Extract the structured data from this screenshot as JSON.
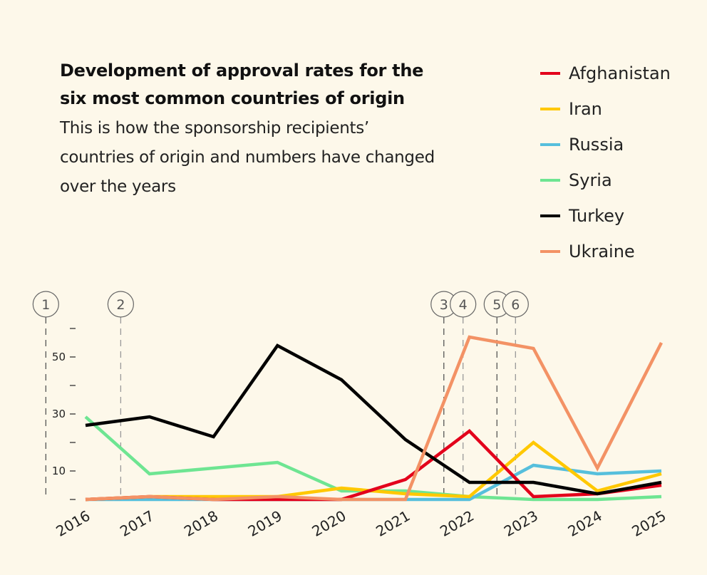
{
  "chart_data": {
    "type": "line",
    "title": "Development of approval rates for the six most common countries of origin",
    "subtitle": "This is how the sponsorship recipients’ countries of origin and numbers have changed over the years",
    "title_lines": [
      "Development of approval rates for the",
      "six most common countries of origin"
    ],
    "subtitle_lines": [
      "This is how the sponsorship recipients’",
      "countries of origin and numbers have changed",
      "over the years"
    ],
    "x": [
      2016,
      2017,
      2018,
      2019,
      2020,
      2021,
      2022,
      2023,
      2024,
      2025
    ],
    "x_tick_labels": [
      "2016",
      "2017",
      "2018",
      "2019",
      "2020",
      "2021",
      "2022",
      "2023",
      "2024",
      "2025"
    ],
    "ylim": [
      0,
      60
    ],
    "y_ticks": [
      0,
      10,
      20,
      30,
      40,
      50,
      60
    ],
    "y_tick_labels": {
      "10": "10",
      "30": "30",
      "50": "50"
    },
    "grid": false,
    "legend_position": "top-right",
    "series": [
      {
        "name": "Afghanistan",
        "color": "#e3001b",
        "values": [
          0,
          1,
          0,
          0,
          0,
          7,
          24,
          1,
          2,
          5
        ]
      },
      {
        "name": "Iran",
        "color": "#ffc800",
        "values": [
          0,
          1,
          1,
          1,
          4,
          2,
          1,
          20,
          3,
          9
        ]
      },
      {
        "name": "Russia",
        "color": "#56bfdc",
        "values": [
          0,
          0,
          0,
          0,
          0,
          0,
          0,
          12,
          9,
          10
        ]
      },
      {
        "name": "Syria",
        "color": "#6ee592",
        "values": [
          29,
          9,
          11,
          13,
          3,
          3,
          1,
          0,
          0,
          1
        ]
      },
      {
        "name": "Turkey",
        "color": "#000000",
        "values": [
          26,
          29,
          22,
          54,
          42,
          21,
          6,
          6,
          2,
          6
        ]
      },
      {
        "name": "Ukraine",
        "color": "#f39265",
        "values": [
          0,
          1,
          0,
          1,
          0,
          0,
          57,
          53,
          11,
          55
        ]
      }
    ],
    "annotations": [
      {
        "label": "1",
        "x": 2015.38,
        "color": "#555555"
      },
      {
        "label": "2",
        "x": 2016.55,
        "color": "#999999"
      },
      {
        "label": "3",
        "x": 2021.6,
        "color": "#555555"
      },
      {
        "label": "4",
        "x": 2021.9,
        "color": "#999999"
      },
      {
        "label": "5",
        "x": 2022.43,
        "color": "#555555"
      },
      {
        "label": "6",
        "x": 2022.72,
        "color": "#999999"
      }
    ]
  }
}
